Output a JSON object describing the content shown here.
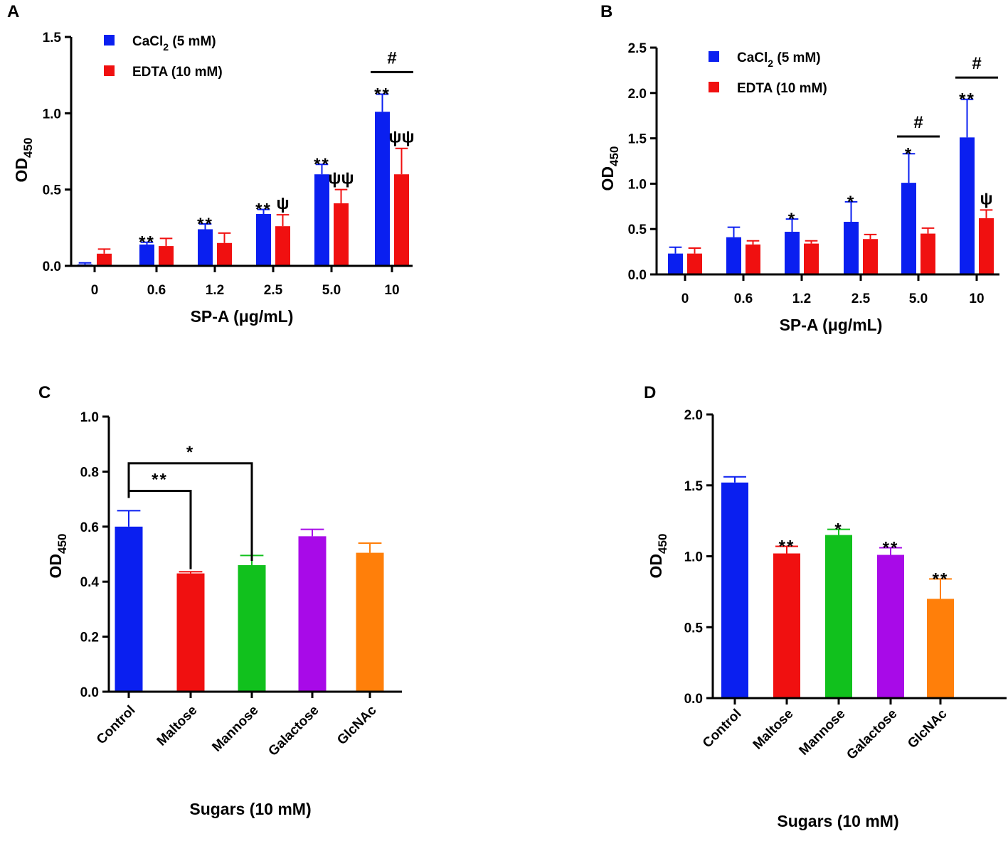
{
  "chart_data": [
    {
      "panel": "A",
      "type": "bar",
      "categories": [
        "0",
        "0.6",
        "1.2",
        "2.5",
        "5.0",
        "10"
      ],
      "series": [
        {
          "name": "CaCl2 (5 mM)",
          "color": "#0a1ff0",
          "values": [
            0.01,
            0.14,
            0.24,
            0.34,
            0.6,
            1.01
          ],
          "errors": [
            0.01,
            0.015,
            0.035,
            0.03,
            0.065,
            0.115
          ]
        },
        {
          "name": "EDTA (10 mM)",
          "color": "#f01010",
          "values": [
            0.08,
            0.13,
            0.15,
            0.26,
            0.41,
            0.6
          ],
          "errors": [
            0.03,
            0.05,
            0.065,
            0.075,
            0.09,
            0.17
          ]
        }
      ],
      "legend": [
        {
          "main": "CaCl",
          "sub": "2",
          "rest": " (5 mM)"
        },
        {
          "main": "EDTA (10 mM)",
          "sub": "",
          "rest": ""
        }
      ],
      "ylim": [
        0,
        1.5
      ],
      "yticks": [
        "0.0",
        "0.5",
        "1.0",
        "1.5"
      ],
      "ylabel": {
        "main": "OD",
        "sub": "450"
      },
      "xlabel": "SP-A (μg/mL)",
      "annotations": [
        {
          "text": "**",
          "cat": 1,
          "bar": 0
        },
        {
          "text": "**",
          "cat": 2,
          "bar": 0
        },
        {
          "text": "**",
          "cat": 3,
          "bar": 0
        },
        {
          "text": "ψ",
          "cat": 3,
          "bar": 1
        },
        {
          "text": "**",
          "cat": 4,
          "bar": 0
        },
        {
          "text": "ψψ",
          "cat": 4,
          "bar": 1
        },
        {
          "text": "**",
          "cat": 5,
          "bar": 0
        },
        {
          "text": "ψψ",
          "cat": 5,
          "bar": 1
        }
      ],
      "overbars": [
        {
          "text": "#",
          "cat": 5,
          "value": 1.27
        }
      ]
    },
    {
      "panel": "B",
      "type": "bar",
      "categories": [
        "0",
        "0.6",
        "1.2",
        "2.5",
        "5.0",
        "10"
      ],
      "series": [
        {
          "name": "CaCl2 (5 mM)",
          "color": "#0a1ff0",
          "values": [
            0.23,
            0.41,
            0.47,
            0.58,
            1.01,
            1.51
          ],
          "errors": [
            0.07,
            0.11,
            0.14,
            0.22,
            0.32,
            0.42
          ]
        },
        {
          "name": "EDTA (10 mM)",
          "color": "#f01010",
          "values": [
            0.23,
            0.33,
            0.34,
            0.39,
            0.45,
            0.62
          ],
          "errors": [
            0.06,
            0.04,
            0.03,
            0.05,
            0.06,
            0.09
          ]
        }
      ],
      "legend": [
        {
          "main": "CaCl",
          "sub": "2",
          "rest": " (5 mM)"
        },
        {
          "main": "EDTA (10 mM)",
          "sub": "",
          "rest": ""
        }
      ],
      "ylim": [
        0,
        2.5
      ],
      "yticks": [
        "0.0",
        "0.5",
        "1.0",
        "1.5",
        "2.0",
        "2.5"
      ],
      "ylabel": {
        "main": "OD",
        "sub": "450"
      },
      "xlabel": "SP-A (μg/mL)",
      "annotations": [
        {
          "text": "*",
          "cat": 2,
          "bar": 0
        },
        {
          "text": "*",
          "cat": 3,
          "bar": 0
        },
        {
          "text": "*",
          "cat": 4,
          "bar": 0
        },
        {
          "text": "**",
          "cat": 5,
          "bar": 0
        },
        {
          "text": "ψ",
          "cat": 5,
          "bar": 1
        }
      ],
      "overbars": [
        {
          "text": "#",
          "cat": 4,
          "value": 1.52
        },
        {
          "text": "#",
          "cat": 5,
          "value": 2.17
        }
      ]
    },
    {
      "panel": "C",
      "type": "bar",
      "categories": [
        "Control",
        "Maltose",
        "Mannose",
        "Galactose",
        "GlcNAc"
      ],
      "series": [
        {
          "name": "OD450",
          "values": [
            0.6,
            0.43,
            0.46,
            0.565,
            0.505
          ],
          "errors": [
            0.058,
            0.006,
            0.035,
            0.025,
            0.035
          ],
          "colors": [
            "#0a1ff0",
            "#f01010",
            "#11c11d",
            "#a80ae8",
            "#ff7f0a"
          ]
        }
      ],
      "ylim": [
        0,
        1.0
      ],
      "yticks": [
        "0.0",
        "0.2",
        "0.4",
        "0.6",
        "0.8",
        "1.0"
      ],
      "ylabel": {
        "main": "OD",
        "sub": "450"
      },
      "xlabel": "Sugars (10 mM)",
      "brackets": [
        {
          "text": "**",
          "from": 0,
          "to": 1,
          "value": 0.73
        },
        {
          "text": "*",
          "from": 0,
          "to": 2,
          "value": 0.83
        }
      ]
    },
    {
      "panel": "D",
      "type": "bar",
      "categories": [
        "Control",
        "Maltose",
        "Mannose",
        "Galactose",
        "GlcNAc"
      ],
      "series": [
        {
          "name": "OD450",
          "values": [
            1.52,
            1.02,
            1.15,
            1.01,
            0.7
          ],
          "errors": [
            0.04,
            0.05,
            0.04,
            0.05,
            0.14
          ],
          "colors": [
            "#0a1ff0",
            "#f01010",
            "#11c11d",
            "#a80ae8",
            "#ff7f0a"
          ]
        }
      ],
      "ylim": [
        0,
        2.0
      ],
      "yticks": [
        "0.0",
        "0.5",
        "1.0",
        "1.5",
        "2.0"
      ],
      "ylabel": {
        "main": "OD",
        "sub": "450"
      },
      "xlabel": "Sugars (10 mM)",
      "annotations": [
        {
          "text": "**",
          "cat": 1,
          "bar": 0
        },
        {
          "text": "*",
          "cat": 2,
          "bar": 0
        },
        {
          "text": "**",
          "cat": 3,
          "bar": 0
        },
        {
          "text": "**",
          "cat": 4,
          "bar": 0
        }
      ]
    }
  ]
}
